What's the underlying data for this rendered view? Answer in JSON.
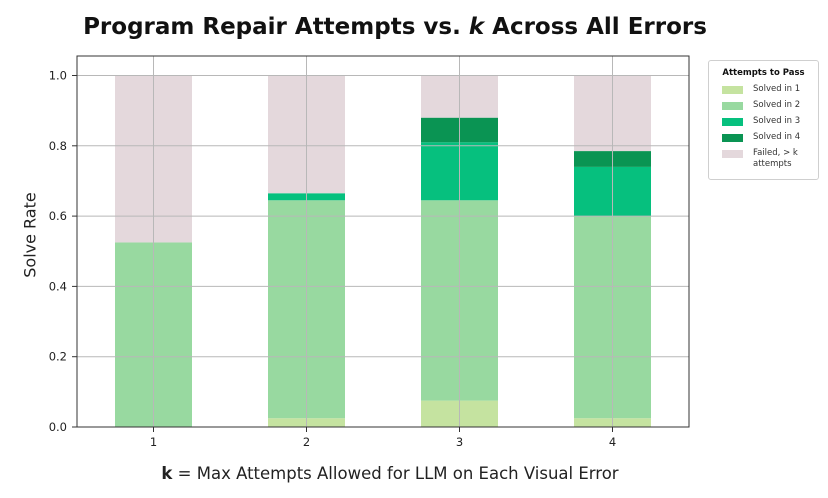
{
  "title_prefix": "Program Repair Attempts vs. ",
  "title_var": "k",
  "title_suffix": " Across All Errors",
  "xlabel_var": "k",
  "xlabel_rest": " = Max Attempts Allowed for LLM on Each Visual Error",
  "ylabel": "Solve Rate",
  "legend": {
    "title": "Attempts to Pass",
    "items": [
      {
        "label": "Solved in 1",
        "color": "#c5e3a0"
      },
      {
        "label": "Solved in 2",
        "color": "#98d9a0"
      },
      {
        "label": "Solved in 3",
        "color": "#06c07e"
      },
      {
        "label": "Solved in 4",
        "color": "#0a9453"
      },
      {
        "label": "Failed, > k\nattempts",
        "color": "#e4d8dc"
      }
    ]
  },
  "chart_data": {
    "type": "bar",
    "stacked": true,
    "categories": [
      "1",
      "2",
      "3",
      "4"
    ],
    "series": [
      {
        "name": "Solved in 1",
        "color": "#c5e3a0",
        "values": [
          0.0,
          0.025,
          0.075,
          0.025
        ]
      },
      {
        "name": "Solved in 2",
        "color": "#98d9a0",
        "values": [
          0.525,
          0.62,
          0.57,
          0.575
        ]
      },
      {
        "name": "Solved in 3",
        "color": "#06c07e",
        "values": [
          0.0,
          0.02,
          0.165,
          0.14
        ]
      },
      {
        "name": "Solved in 4",
        "color": "#0a9453",
        "values": [
          0.0,
          0.0,
          0.07,
          0.045
        ]
      },
      {
        "name": "Failed, > k attempts",
        "color": "#e4d8dc",
        "values": [
          0.475,
          0.335,
          0.12,
          0.215
        ]
      }
    ],
    "ylim": [
      0,
      1.0
    ],
    "yticks": [
      "0.0",
      "0.2",
      "0.4",
      "0.6",
      "0.8",
      "1.0"
    ],
    "grid": true,
    "legend_position": "outside-right"
  }
}
